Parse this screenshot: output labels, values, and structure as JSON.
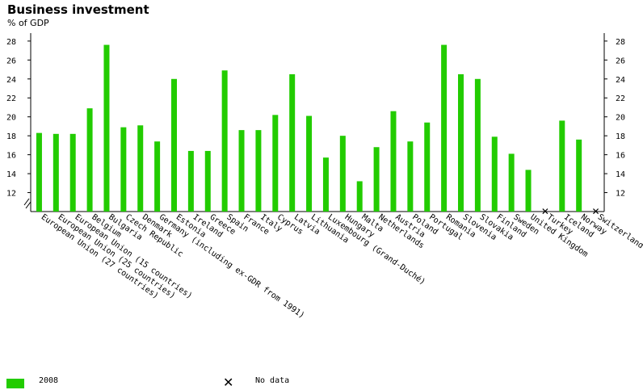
{
  "chart_data": {
    "type": "bar",
    "title": "Business investment",
    "ylabel": "% of GDP",
    "ylim": [
      10,
      28
    ],
    "yticks": [
      12,
      14,
      16,
      18,
      20,
      22,
      24,
      26,
      28
    ],
    "categories": [
      "European Union (27 countries)",
      "European Union (25 countries)",
      "European Union (15 countries)",
      "Belgium",
      "Bulgaria",
      "Czech Republic",
      "Denmark",
      "Germany (including ex-GDR from 1991)",
      "Estonia",
      "Ireland",
      "Greece",
      "Spain",
      "France",
      "Italy",
      "Cyprus",
      "Latvia",
      "Lithuania",
      "Luxembourg (Grand-Duché)",
      "Hungary",
      "Malta",
      "Netherlands",
      "Austria",
      "Poland",
      "Portugal",
      "Romania",
      "Slovenia",
      "Slovakia",
      "Finland",
      "Sweden",
      "United Kingdom",
      "Turkey",
      "Iceland",
      "Norway",
      "Switzerland"
    ],
    "series": [
      {
        "name": "2008",
        "color": "#22cc00",
        "values": [
          18.3,
          18.2,
          18.2,
          20.9,
          27.6,
          18.9,
          19.1,
          17.4,
          24.0,
          16.4,
          16.4,
          24.9,
          18.6,
          18.6,
          20.2,
          24.5,
          20.1,
          15.7,
          18.0,
          13.2,
          16.8,
          20.6,
          17.4,
          19.4,
          27.6,
          24.5,
          24.0,
          17.9,
          16.1,
          14.4,
          null,
          19.6,
          17.6,
          null
        ]
      }
    ],
    "no_data_marker": "X",
    "grid": false,
    "axis_break": true
  },
  "legend": {
    "series_label": "2008",
    "no_data_label": "No data"
  }
}
